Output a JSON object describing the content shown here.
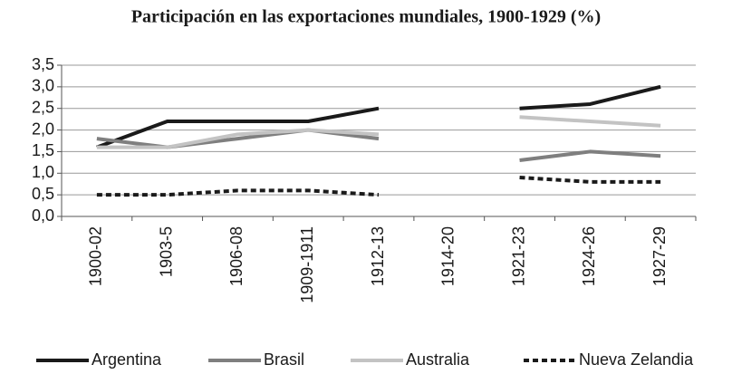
{
  "chart_data": {
    "type": "line",
    "title": "Participación en las exportaciones mundiales, 1900-1929 (%)",
    "categories": [
      "1900-02",
      "1903-5",
      "1906-08",
      "1909-1911",
      "1912-13",
      "1914-20",
      "1921-23",
      "1924-26",
      "1927-29"
    ],
    "series": [
      {
        "name": "Argentina",
        "color": "#1a1a1a",
        "values": [
          1.6,
          2.2,
          2.2,
          2.2,
          2.5,
          null,
          2.5,
          2.6,
          3.0
        ]
      },
      {
        "name": "Brasil",
        "color": "#7f7f7f",
        "values": [
          1.8,
          1.6,
          1.8,
          2.0,
          1.8,
          null,
          1.3,
          1.5,
          1.4
        ]
      },
      {
        "name": "Australia",
        "color": "#c3c3c3",
        "values": [
          1.6,
          1.6,
          1.9,
          2.0,
          1.9,
          null,
          2.3,
          2.2,
          2.1
        ]
      },
      {
        "name": "Nueva Zelandia",
        "color": "#1a1a1a",
        "dashed": true,
        "values": [
          0.5,
          0.5,
          0.6,
          0.6,
          0.5,
          null,
          0.9,
          0.8,
          0.8
        ]
      }
    ],
    "ylim": [
      0,
      3.5
    ],
    "yticks": [
      {
        "value": 0,
        "label": "0,0"
      },
      {
        "value": 0.5,
        "label": "0,5"
      },
      {
        "value": 1,
        "label": "1,0"
      },
      {
        "value": 1.5,
        "label": "1,5"
      },
      {
        "value": 2,
        "label": "2,0"
      },
      {
        "value": 2.5,
        "label": "2,5"
      },
      {
        "value": 3,
        "label": "3,0"
      },
      {
        "value": 3.5,
        "label": "3,5"
      }
    ],
    "grid": true,
    "legend": "bottom"
  }
}
